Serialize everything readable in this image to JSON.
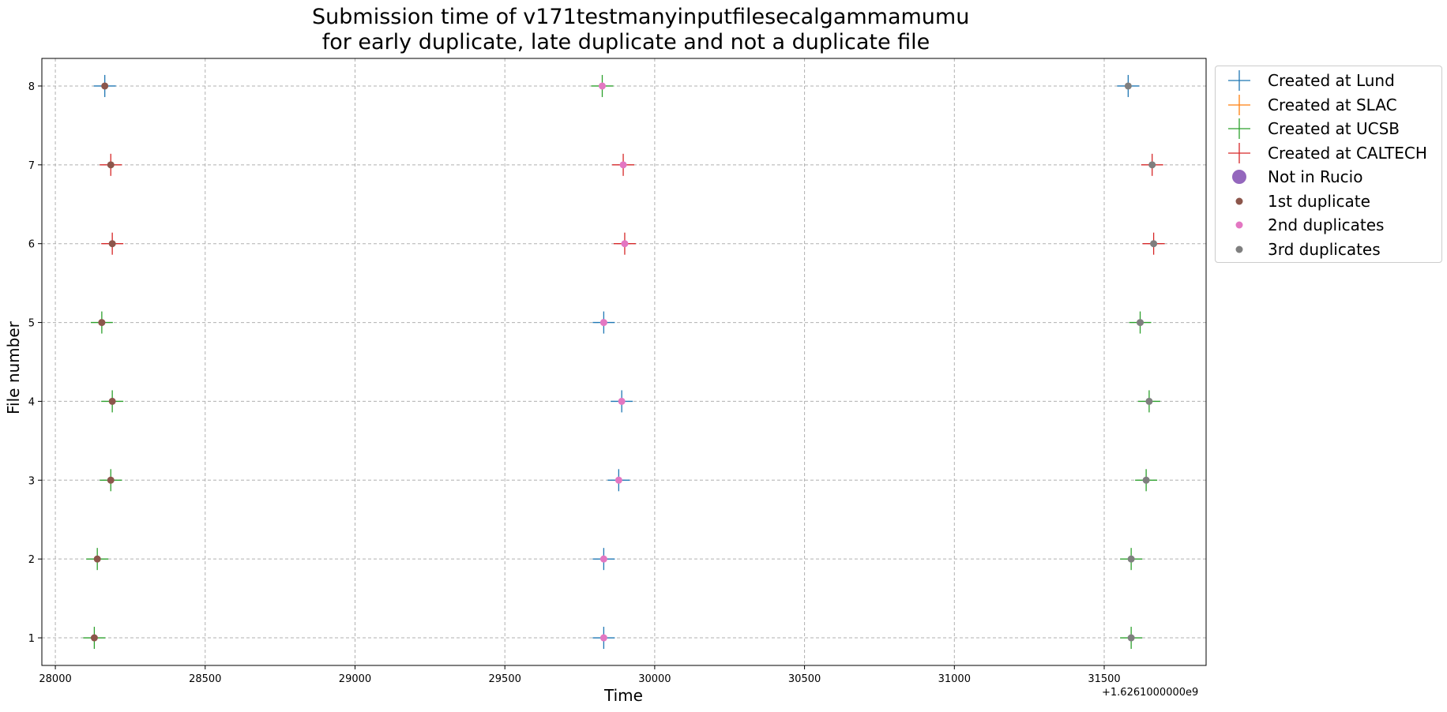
{
  "chart_data": {
    "type": "scatter",
    "title_lines": [
      "Submission time of v171testmanyinputfilesecalgammamumu",
      "for early duplicate, late duplicate and not a duplicate file"
    ],
    "xlabel": "Time",
    "ylabel": "File number",
    "x_offset_text": "+1.6261000000e9",
    "xlim": [
      27955,
      31840
    ],
    "ylim": [
      0.65,
      8.35
    ],
    "x_ticks": [
      28000,
      28500,
      29000,
      29500,
      30000,
      30500,
      31000,
      31500
    ],
    "y_ticks": [
      1,
      2,
      3,
      4,
      5,
      6,
      7,
      8
    ],
    "grid": true,
    "legend_position": "outside upper right",
    "colors": {
      "lund": "#1f77b4",
      "slac": "#ff7f0e",
      "ucsb": "#2ca02c",
      "caltech": "#d62728",
      "not_in_rucio": "#9467bd",
      "first_dup": "#8c564b",
      "second_dup": "#e377c2",
      "third_dup": "#7f7f7f"
    },
    "series": [
      {
        "name": "Created at Lund",
        "marker": "plus",
        "color_key": "lund",
        "points": [
          [
            28165,
            8
          ],
          [
            29830,
            5
          ],
          [
            29890,
            4
          ],
          [
            29880,
            3
          ],
          [
            29830,
            2
          ],
          [
            29830,
            1
          ],
          [
            31580,
            8
          ]
        ]
      },
      {
        "name": "Created at SLAC",
        "marker": "plus",
        "color_key": "slac",
        "points": []
      },
      {
        "name": "Created at UCSB",
        "marker": "plus",
        "color_key": "ucsb",
        "points": [
          [
            28155,
            5
          ],
          [
            28190,
            4
          ],
          [
            28185,
            3
          ],
          [
            28140,
            2
          ],
          [
            28130,
            1
          ],
          [
            29825,
            8
          ],
          [
            31620,
            5
          ],
          [
            31650,
            4
          ],
          [
            31640,
            3
          ],
          [
            31590,
            2
          ],
          [
            31590,
            1
          ]
        ]
      },
      {
        "name": "Created at CALTECH",
        "marker": "plus",
        "color_key": "caltech",
        "points": [
          [
            28185,
            7
          ],
          [
            28190,
            6
          ],
          [
            29895,
            7
          ],
          [
            29900,
            6
          ],
          [
            31660,
            7
          ],
          [
            31665,
            6
          ]
        ]
      },
      {
        "name": "Not in Rucio",
        "marker": "dot-large",
        "color_key": "not_in_rucio",
        "points": []
      },
      {
        "name": "1st duplicate",
        "marker": "dot",
        "color_key": "first_dup",
        "points": [
          [
            28165,
            8
          ],
          [
            28185,
            7
          ],
          [
            28190,
            6
          ],
          [
            28155,
            5
          ],
          [
            28190,
            4
          ],
          [
            28185,
            3
          ],
          [
            28140,
            2
          ],
          [
            28130,
            1
          ]
        ]
      },
      {
        "name": "2nd duplicates",
        "marker": "dot",
        "color_key": "second_dup",
        "points": [
          [
            29825,
            8
          ],
          [
            29895,
            7
          ],
          [
            29900,
            6
          ],
          [
            29830,
            5
          ],
          [
            29890,
            4
          ],
          [
            29880,
            3
          ],
          [
            29830,
            2
          ],
          [
            29830,
            1
          ]
        ]
      },
      {
        "name": "3rd duplicates",
        "marker": "dot",
        "color_key": "third_dup",
        "points": [
          [
            31580,
            8
          ],
          [
            31660,
            7
          ],
          [
            31665,
            6
          ],
          [
            31620,
            5
          ],
          [
            31650,
            4
          ],
          [
            31640,
            3
          ],
          [
            31590,
            2
          ],
          [
            31590,
            1
          ]
        ]
      }
    ]
  }
}
